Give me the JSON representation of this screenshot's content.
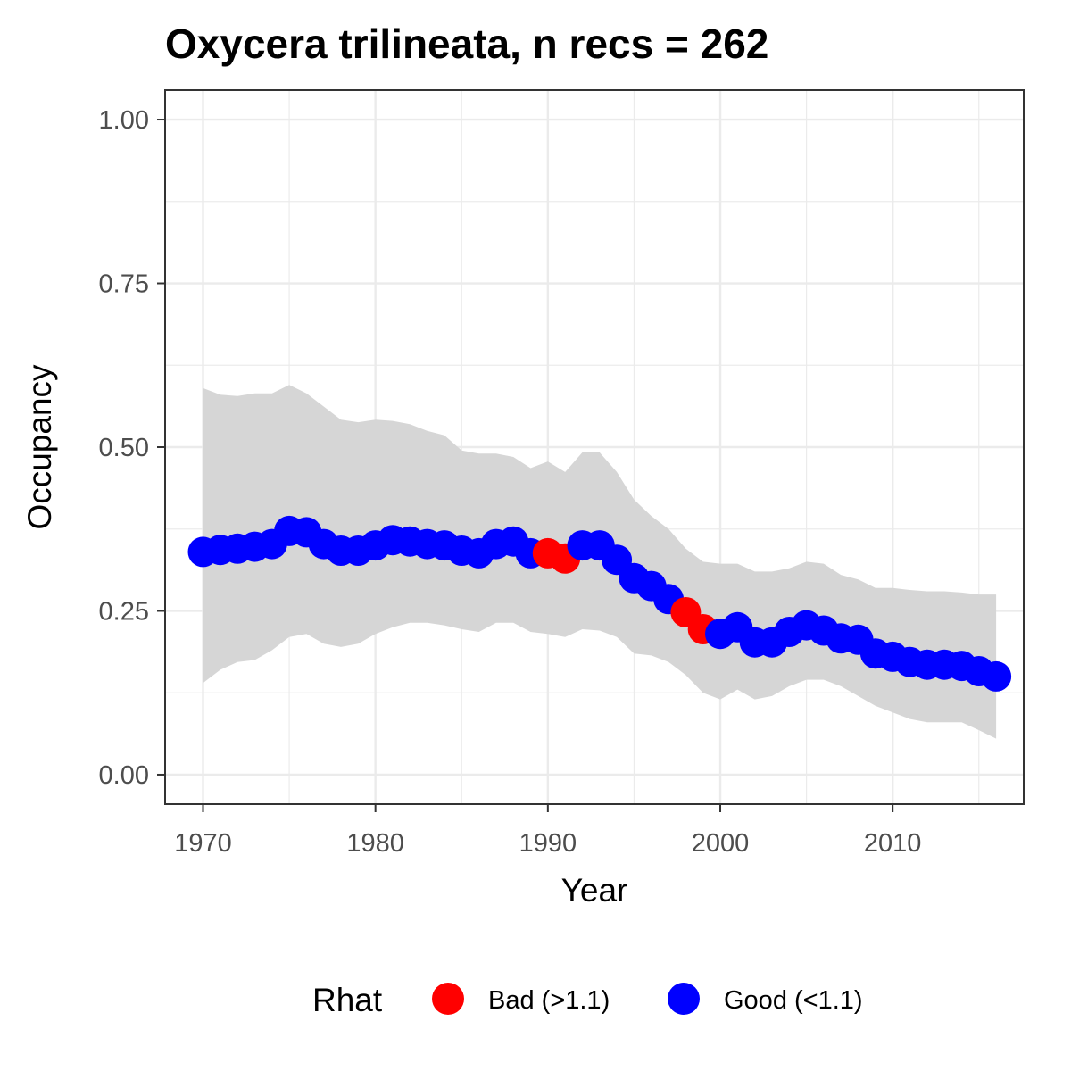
{
  "chart_data": {
    "type": "scatter",
    "title": "Oxycera trilineata, n recs = 262",
    "xlabel": "Year",
    "ylabel": "Occupancy",
    "xlim": [
      1967.8,
      2017.6
    ],
    "ylim": [
      -0.045,
      1.045
    ],
    "x_ticks": [
      1970,
      1980,
      1990,
      2000,
      2010
    ],
    "x_tick_labels": [
      "1970",
      "1980",
      "1990",
      "2000",
      "2010"
    ],
    "y_ticks": [
      0,
      0.25,
      0.5,
      0.75,
      1
    ],
    "y_tick_labels": [
      "0.00",
      "0.25",
      "0.50",
      "0.75",
      "1.00"
    ],
    "grid": true,
    "legend": {
      "title": "Rhat",
      "position": "bottom",
      "entries": [
        {
          "label": "Bad (>1.1)",
          "color": "#ff0000"
        },
        {
          "label": "Good (<1.1)",
          "color": "#0000ff"
        }
      ]
    },
    "colors": {
      "bad": "#ff0000",
      "good": "#0000ff",
      "ribbon": "#d6d6d6"
    },
    "x": [
      1970,
      1971,
      1972,
      1973,
      1974,
      1975,
      1976,
      1977,
      1978,
      1979,
      1980,
      1981,
      1982,
      1983,
      1984,
      1985,
      1986,
      1987,
      1988,
      1989,
      1990,
      1991,
      1992,
      1993,
      1994,
      1995,
      1996,
      1997,
      1998,
      1999,
      2000,
      2001,
      2002,
      2003,
      2004,
      2005,
      2006,
      2007,
      2008,
      2009,
      2010,
      2011,
      2012,
      2013,
      2014,
      2015,
      2016
    ],
    "occupancy": [
      0.34,
      0.343,
      0.345,
      0.348,
      0.352,
      0.372,
      0.37,
      0.352,
      0.342,
      0.342,
      0.35,
      0.358,
      0.356,
      0.352,
      0.35,
      0.342,
      0.338,
      0.352,
      0.356,
      0.338,
      0.338,
      0.33,
      0.35,
      0.35,
      0.328,
      0.3,
      0.288,
      0.268,
      0.248,
      0.222,
      0.215,
      0.225,
      0.202,
      0.202,
      0.218,
      0.228,
      0.22,
      0.208,
      0.206,
      0.185,
      0.18,
      0.172,
      0.168,
      0.168,
      0.166,
      0.158,
      0.15
    ],
    "lower": [
      0.14,
      0.16,
      0.172,
      0.175,
      0.19,
      0.21,
      0.215,
      0.2,
      0.195,
      0.2,
      0.215,
      0.225,
      0.232,
      0.232,
      0.228,
      0.222,
      0.218,
      0.232,
      0.232,
      0.218,
      0.215,
      0.21,
      0.222,
      0.22,
      0.21,
      0.185,
      0.182,
      0.172,
      0.152,
      0.125,
      0.115,
      0.13,
      0.115,
      0.12,
      0.135,
      0.145,
      0.145,
      0.135,
      0.12,
      0.105,
      0.095,
      0.085,
      0.08,
      0.08,
      0.08,
      0.068,
      0.055
    ],
    "upper": [
      0.59,
      0.58,
      0.578,
      0.582,
      0.582,
      0.595,
      0.582,
      0.562,
      0.542,
      0.538,
      0.542,
      0.54,
      0.535,
      0.525,
      0.518,
      0.495,
      0.49,
      0.49,
      0.485,
      0.468,
      0.478,
      0.462,
      0.492,
      0.492,
      0.462,
      0.42,
      0.395,
      0.375,
      0.345,
      0.325,
      0.322,
      0.322,
      0.31,
      0.31,
      0.315,
      0.325,
      0.322,
      0.305,
      0.298,
      0.285,
      0.285,
      0.282,
      0.28,
      0.28,
      0.278,
      0.275,
      0.275
    ],
    "rhat_status": [
      "good",
      "good",
      "good",
      "good",
      "good",
      "good",
      "good",
      "good",
      "good",
      "good",
      "good",
      "good",
      "good",
      "good",
      "good",
      "good",
      "good",
      "good",
      "good",
      "good",
      "bad",
      "bad",
      "good",
      "good",
      "good",
      "good",
      "good",
      "good",
      "bad",
      "bad",
      "good",
      "good",
      "good",
      "good",
      "good",
      "good",
      "good",
      "good",
      "good",
      "good",
      "good",
      "good",
      "good",
      "good",
      "good",
      "good",
      "good"
    ]
  }
}
